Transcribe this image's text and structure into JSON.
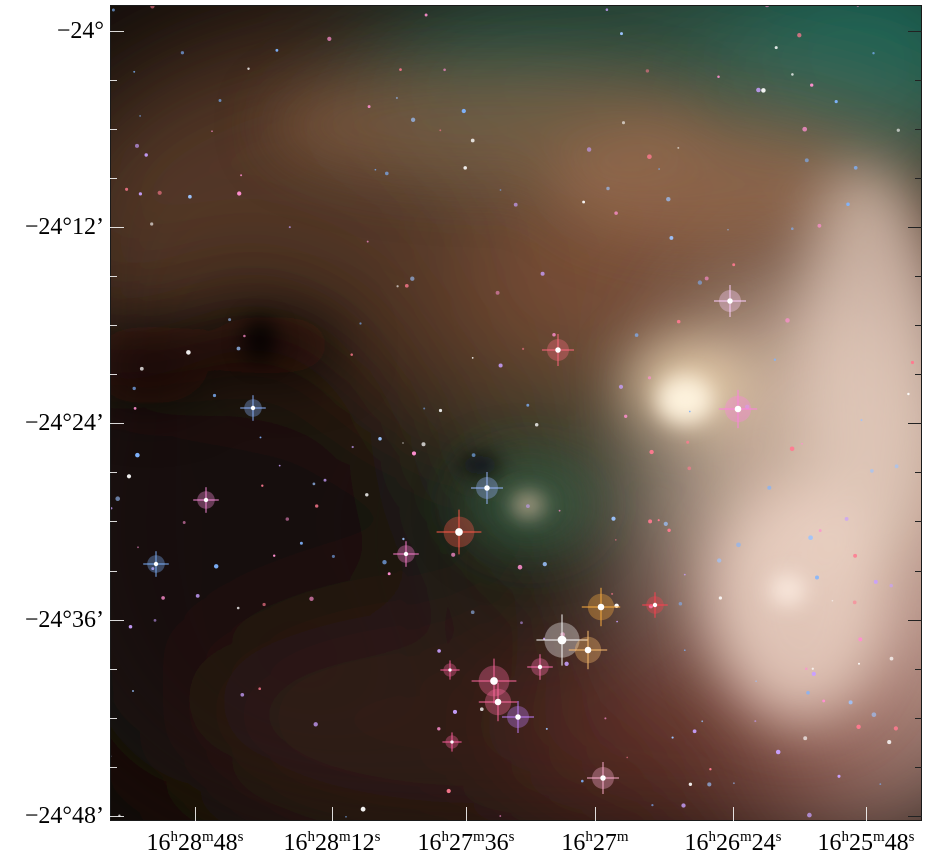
{
  "image": {
    "subject": "infrared-nebula-star-field",
    "palette": {
      "dust_dark": "#120c08",
      "dust_brown": "#8a5638",
      "dust_green": "#1f6a58",
      "glow_pink": "#f0c8c0",
      "glow_cream": "#f4e2c8",
      "star_blue": "#7fb4ff",
      "star_pink": "#ff7fc0",
      "star_red": "#ff5a4a",
      "star_orange": "#ffb040"
    }
  },
  "axes": {
    "declination_ticks": [
      {
        "label": "−24°"
      },
      {
        "label": "−24°12’"
      },
      {
        "label": "−24°24’"
      },
      {
        "label": "−24°36’"
      },
      {
        "label": "−24°48’"
      }
    ],
    "right_ascension_ticks": [
      {
        "h": "16",
        "h_unit": "h",
        "m": "28",
        "m_unit": "m",
        "s": "48",
        "s_unit": "s"
      },
      {
        "h": "16",
        "h_unit": "h",
        "m": "28",
        "m_unit": "m",
        "s": "12",
        "s_unit": "s"
      },
      {
        "h": "16",
        "h_unit": "h",
        "m": "27",
        "m_unit": "m",
        "s": "36",
        "s_unit": "s"
      },
      {
        "h": "16",
        "h_unit": "h",
        "m": "27",
        "m_unit": "m",
        "s": "",
        "s_unit": ""
      },
      {
        "h": "16",
        "h_unit": "h",
        "m": "26",
        "m_unit": "m",
        "s": "24",
        "s_unit": "s"
      },
      {
        "h": "16",
        "h_unit": "h",
        "m": "25",
        "m_unit": "m",
        "s": "48",
        "s_unit": "s"
      }
    ]
  }
}
